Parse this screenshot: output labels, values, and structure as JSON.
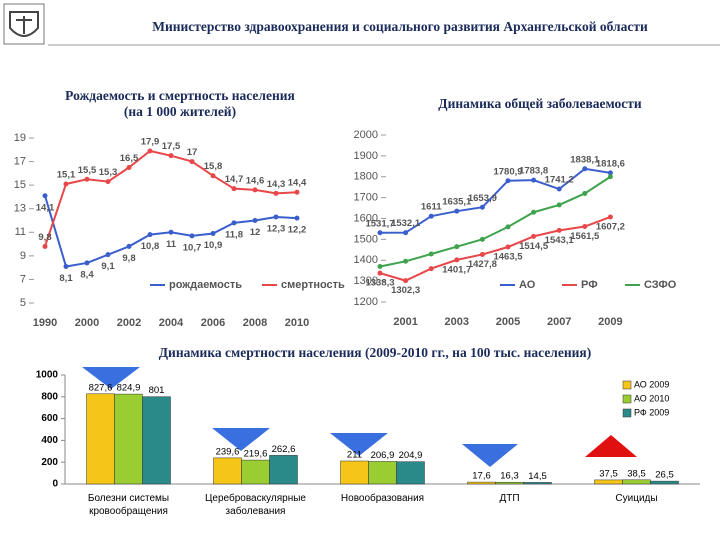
{
  "header": {
    "title": "Министерство здравоохранения и социального развития Архангельской области"
  },
  "chart_data": [
    {
      "type": "line",
      "title": "Рождаемость и смертность населения (на 1 000 жителей)",
      "categories": [
        "1990",
        null,
        "2000",
        null,
        "2002",
        null,
        "2004",
        null,
        "2006",
        null,
        "2008",
        null,
        "2010"
      ],
      "series": [
        {
          "name": "рождаемость",
          "color": "#3a5fcd",
          "values": [
            14.1,
            8.1,
            8.4,
            9.1,
            9.8,
            10.8,
            11,
            10.7,
            10.9,
            11.8,
            12,
            12.3,
            12.2
          ],
          "value_labels": [
            "14,1",
            "8,1",
            "8,4",
            "9,1",
            "9,8",
            "10,8",
            "11",
            "10,7",
            "10,9",
            "11,8",
            "12",
            "12,3",
            "12,2"
          ]
        },
        {
          "name": "смертность",
          "color": "#e8474a",
          "values": [
            9.8,
            15.1,
            15.5,
            15.3,
            16.5,
            17.9,
            17.5,
            17,
            15.8,
            14.7,
            14.6,
            14.3,
            14.4
          ],
          "value_labels": [
            "9,8",
            "15,1",
            "15,5",
            "15,3",
            "16,5",
            "17,9",
            "17,5",
            "17",
            "15,8",
            "14,7",
            "14,6",
            "14,3",
            "14,4"
          ]
        }
      ],
      "ylim": [
        5,
        19
      ],
      "yticks": [
        5,
        7,
        9,
        11,
        13,
        15,
        17,
        19
      ]
    },
    {
      "type": "line",
      "title": "Динамика общей заболеваемости",
      "x": [
        2000,
        2001,
        2002,
        2003,
        2004,
        2005,
        2006,
        2007,
        2008,
        2009
      ],
      "series": [
        {
          "name": "АО",
          "color": "#3a5fcd",
          "values": [
            1531.7,
            1532.1,
            1611,
            1635.1,
            1653.9,
            1780.9,
            1783.8,
            1741.2,
            1838.1,
            1818.6
          ],
          "value_labels": [
            "1531,7",
            "1532,1",
            "1611",
            "1635,1",
            "1653,9",
            "1780,9",
            "1783,8",
            "1741,2",
            "1838,1",
            "1818,6"
          ]
        },
        {
          "name": "РФ",
          "color": "#e8474a",
          "values": [
            1338.3,
            1302.3,
            1360,
            1401.7,
            1427.8,
            1463.5,
            1514.5,
            1543.1,
            1561.5,
            1607.2
          ],
          "value_labels": [
            "1338,3",
            "1302,3",
            null,
            "1401,7",
            "1427,8",
            "1463,5",
            "1514,5",
            "1543,1",
            "1561,5",
            "1607,2"
          ]
        },
        {
          "name": "СЗФО",
          "color": "#3fa34d",
          "values": [
            1370,
            1395,
            1430,
            1465,
            1500,
            1560,
            1630,
            1665,
            1720,
            1800
          ]
        }
      ],
      "xlim": [
        2000,
        2010
      ],
      "xticks": [
        2001,
        2003,
        2005,
        2007,
        2009
      ],
      "ylim": [
        1200,
        2000
      ],
      "yticks": [
        1200,
        1300,
        1400,
        1500,
        1600,
        1700,
        1800,
        1900,
        2000
      ]
    },
    {
      "type": "bar",
      "title": "Динамика смертности населения (2009-2010 гг., на 100 тыс. населения)",
      "categories": [
        "Болезни системы кровообращения",
        "Цереброваскулярные заболевания",
        "Новообразования",
        "ДТП",
        "Суициды"
      ],
      "series": [
        {
          "name": "АО 2009",
          "color": "#f5c518",
          "values": [
            827.6,
            239.6,
            211,
            17.6,
            37.5
          ],
          "value_labels": [
            "827,6",
            "239,6",
            "211",
            "17,6",
            "37,5"
          ]
        },
        {
          "name": "АО 2010",
          "color": "#9acd32",
          "values": [
            824.9,
            219.6,
            206.9,
            16.3,
            38.5
          ],
          "value_labels": [
            "824,9",
            "219,6",
            "206,9",
            "16,3",
            "38,5"
          ]
        },
        {
          "name": "РФ 2009",
          "color": "#2a8a8a",
          "values": [
            801,
            262.6,
            204.9,
            14.5,
            26.5
          ],
          "value_labels": [
            "801",
            "262,6",
            "204,9",
            "14,5",
            "26,5"
          ]
        }
      ],
      "ylim": [
        0,
        1000
      ],
      "yticks": [
        0,
        200,
        400,
        600,
        800,
        1000
      ]
    }
  ]
}
